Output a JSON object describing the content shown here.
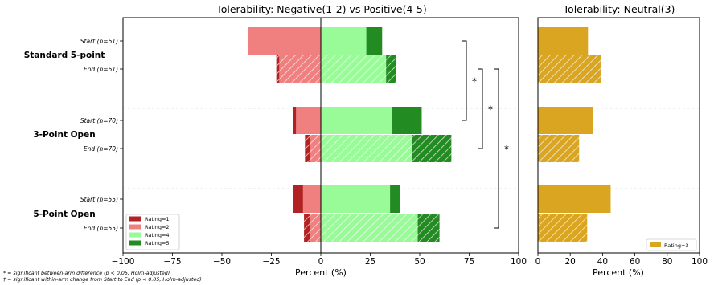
{
  "chart_data": [
    {
      "type": "bar",
      "orientation": "horizontal-diverging",
      "title": "Tolerability: Negative(1-2) vs Positive(4-5)",
      "xlabel": "Percent (%)",
      "xlim": [
        -100,
        100
      ],
      "xticks": [
        "−100",
        "−75",
        "−50",
        "−25",
        "0",
        "25",
        "50",
        "75",
        "100"
      ],
      "groups": [
        {
          "name": "Standard 5-point",
          "rows": [
            {
              "label": "Start (n=61)",
              "phase": "start",
              "rating1": 0,
              "rating2": 37,
              "rating4": 23,
              "rating5": 8
            },
            {
              "label": "End (n=61)",
              "phase": "end",
              "rating1": 1.5,
              "rating2": 21,
              "rating4": 33,
              "rating5": 5
            }
          ]
        },
        {
          "name": "3-Point Open",
          "rows": [
            {
              "label": "Start (n=70)",
              "phase": "start",
              "rating1": 1.5,
              "rating2": 12.5,
              "rating4": 36,
              "rating5": 15
            },
            {
              "label": "End (n=70)",
              "phase": "end",
              "rating1": 2.5,
              "rating2": 5.5,
              "rating4": 46,
              "rating5": 20
            }
          ]
        },
        {
          "name": "5-Point Open",
          "rows": [
            {
              "label": "Start (n=55)",
              "phase": "start",
              "rating1": 5,
              "rating2": 9,
              "rating4": 35,
              "rating5": 5
            },
            {
              "label": "End (n=55)",
              "phase": "end",
              "rating1": 3,
              "rating2": 5.5,
              "rating4": 49,
              "rating5": 11
            }
          ]
        }
      ],
      "legend": {
        "placement": "lower-left",
        "entries": [
          {
            "label": "Rating=1",
            "color": "#b22222"
          },
          {
            "label": "Rating=2",
            "color": "#f08080"
          },
          {
            "label": "Rating=4",
            "color": "#98fb98"
          },
          {
            "label": "Rating=5",
            "color": "#228b22"
          }
        ]
      },
      "brackets": [
        {
          "from_group": 0,
          "to_group": 1,
          "label": "*"
        },
        {
          "from_group": 0,
          "to_group": 1,
          "label": "*"
        },
        {
          "from_group": 0,
          "to_group": 2,
          "label": "*"
        }
      ]
    },
    {
      "type": "bar",
      "orientation": "horizontal",
      "title": "Tolerability: Neutral(3)",
      "xlabel": "Percent (%)",
      "xlim": [
        0,
        100
      ],
      "xticks": [
        "0",
        "20",
        "40",
        "60",
        "80",
        "100"
      ],
      "values": [
        31,
        39,
        34,
        25.5,
        45,
        30.5
      ],
      "legend": {
        "placement": "lower-right",
        "entries": [
          {
            "label": "Rating=3",
            "color": "#daa520"
          }
        ]
      }
    }
  ],
  "footnotes": [
    "* = significant between-arm difference (p < 0.05, Holm-adjusted)",
    "† = significant within-arm change from Start to End (p < 0.05, Holm-adjusted)"
  ]
}
